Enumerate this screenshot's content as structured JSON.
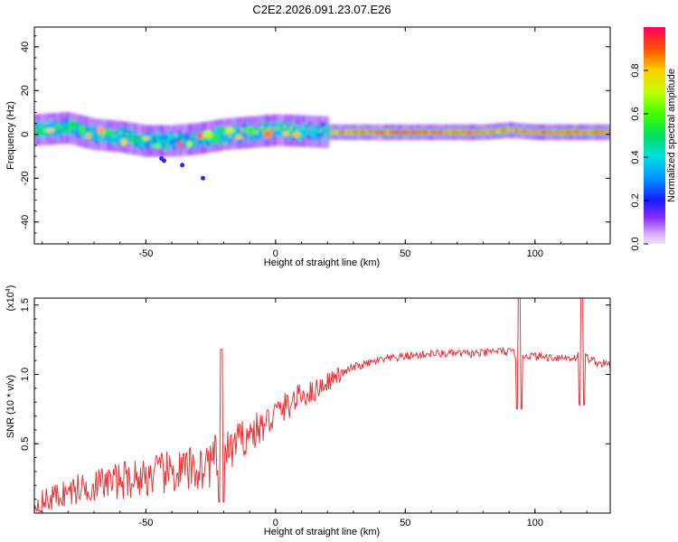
{
  "title": "C2E2.2026.091.23.07.E26",
  "chart_data": [
    {
      "type": "heatmap",
      "name": "spectrogram",
      "xlabel": "Height of straight line (km)",
      "ylabel": "Frequency (Hz)",
      "xlim": [
        -93,
        129
      ],
      "ylim": [
        -50,
        49
      ],
      "xticks": [
        -50,
        0,
        50,
        100
      ],
      "yticks": [
        -40,
        -20,
        0,
        20,
        40
      ],
      "colorbar": {
        "label": "Normalized spectral amplitude",
        "range": [
          0,
          1
        ],
        "ticks": [
          0.0,
          0.2,
          0.4,
          0.6,
          0.8
        ]
      },
      "ridge": {
        "description": "narrow band of high amplitude near the zero-frequency line",
        "x": [
          -93,
          -80,
          -70,
          -60,
          -50,
          -40,
          -30,
          -20,
          -10,
          0,
          20,
          40,
          60,
          80,
          90,
          100,
          110,
          120,
          129
        ],
        "center_freq": [
          2,
          3,
          0,
          -1,
          -3,
          -3,
          -2,
          0,
          1,
          2,
          1,
          1,
          1,
          1,
          2,
          1,
          1,
          1,
          1
        ],
        "intensity": [
          0.55,
          0.6,
          0.65,
          0.6,
          0.55,
          0.55,
          0.6,
          0.7,
          0.8,
          0.85,
          0.9,
          0.95,
          0.95,
          0.9,
          0.9,
          0.95,
          0.95,
          0.9,
          0.9
        ]
      },
      "outliers": [
        {
          "x": -44,
          "freq": -11
        },
        {
          "x": -43,
          "freq": -12
        },
        {
          "x": -36,
          "freq": -14
        },
        {
          "x": -28,
          "freq": -20
        }
      ]
    },
    {
      "type": "line",
      "name": "snr",
      "xlabel": "Height of straight line (km)",
      "ylabel": "SNR (10 * v/v)",
      "yscale_label": "(x10",
      "yscale_exp": "4",
      "yscale_close": ")",
      "xlim": [
        -93,
        129
      ],
      "ylim": [
        0,
        1.55
      ],
      "xticks": [
        -50,
        0,
        50,
        100
      ],
      "yticks": [
        0.5,
        1.0,
        1.5
      ],
      "ytick_labels": [
        "0.5",
        "1.0",
        "1.5"
      ],
      "color": "#e8353a",
      "series": {
        "x": [
          -93,
          -85,
          -75,
          -65,
          -55,
          -45,
          -35,
          -28,
          -22,
          -18,
          -12,
          -5,
          0,
          5,
          10,
          15,
          20,
          25,
          30,
          40,
          50,
          60,
          70,
          80,
          85,
          90,
          93,
          95,
          100,
          110,
          115,
          118,
          120,
          125,
          129
        ],
        "y": [
          0.05,
          0.12,
          0.18,
          0.22,
          0.25,
          0.28,
          0.3,
          0.33,
          0.4,
          0.45,
          0.55,
          0.62,
          0.72,
          0.78,
          0.85,
          0.88,
          0.95,
          1.0,
          1.05,
          1.1,
          1.13,
          1.15,
          1.15,
          1.15,
          1.17,
          1.16,
          1.15,
          1.14,
          1.13,
          1.12,
          1.12,
          1.15,
          1.12,
          1.08,
          1.07
        ]
      },
      "spikes": [
        {
          "x": -21,
          "peak": 1.18,
          "trough": 0.08
        },
        {
          "x": 94,
          "peak": 1.55,
          "trough": 0.75
        },
        {
          "x": 118,
          "peak": 1.55,
          "trough": 0.78
        }
      ]
    }
  ]
}
